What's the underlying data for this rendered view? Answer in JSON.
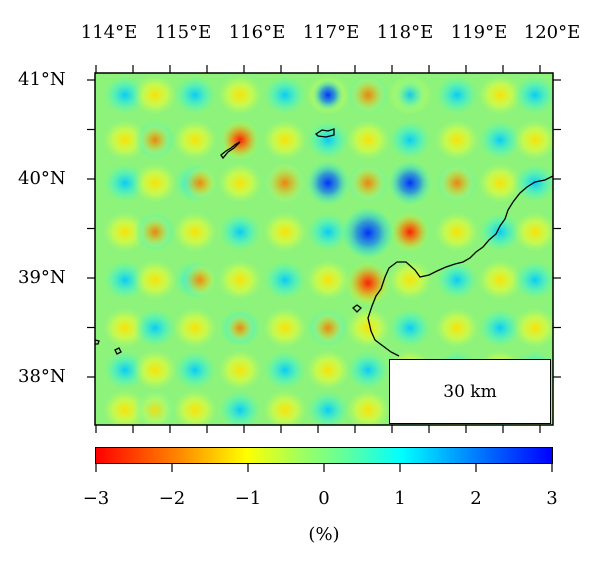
{
  "map": {
    "lon_labels": [
      "114°E",
      "115°E",
      "116°E",
      "117°E",
      "118°E",
      "119°E",
      "120°E"
    ],
    "lat_labels": [
      "41°N",
      "40°N",
      "39°N",
      "38°N"
    ],
    "scale_label": "30 km"
  },
  "colorbar": {
    "tick_labels": [
      "−3",
      "−2",
      "−1",
      "0",
      "1",
      "2",
      "3"
    ],
    "unit": "(%)",
    "colors": [
      "#ff0000",
      "#ff7f00",
      "#ffff00",
      "#9fff5f",
      "#00ffff",
      "#007fff",
      "#0000ff"
    ]
  }
}
